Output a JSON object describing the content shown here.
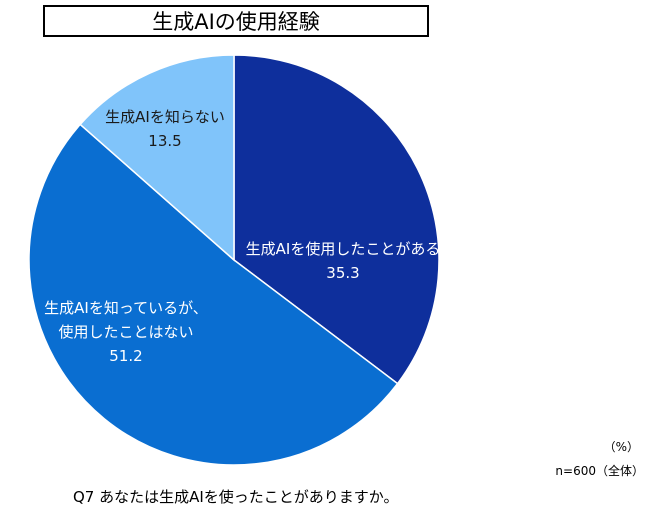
{
  "title": "生成AIの使用経験",
  "unit_note": "（%）",
  "sample_note": "n=600（全体）",
  "question": "Q7 あなたは生成AIを使ったことがありますか。",
  "chart_data": {
    "type": "pie",
    "title": "生成AIの使用経験",
    "slices": [
      {
        "label": [
          "生成AIを使用したことがある"
        ],
        "value": 35.3,
        "value_text": "35.3",
        "color": "#0e2f9c"
      },
      {
        "label": [
          "生成AIを知っているが、",
          "使用したことはない"
        ],
        "value": 51.2,
        "value_text": "51.2",
        "color": "#0a6ed1"
      },
      {
        "label": [
          "生成AIを知らない"
        ],
        "value": 13.5,
        "value_text": "13.5",
        "color": "#80c4fa"
      }
    ]
  }
}
